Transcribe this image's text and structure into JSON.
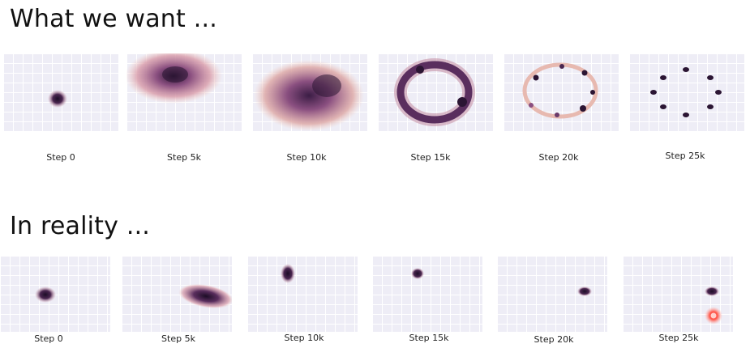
{
  "top_section": {
    "title": "What we want ...",
    "panels": [
      {
        "caption": "Step 0"
      },
      {
        "caption": "Step 5k"
      },
      {
        "caption": "Step 10k"
      },
      {
        "caption": "Step 15k"
      },
      {
        "caption": "Step 20k"
      },
      {
        "caption": "Step 25k"
      }
    ]
  },
  "bottom_section": {
    "title": "In reality ...",
    "panels": [
      {
        "caption": "Step 0"
      },
      {
        "caption": "Step 5k"
      },
      {
        "caption": "Step 10k"
      },
      {
        "caption": "Step 15k"
      },
      {
        "caption": "Step 20k"
      },
      {
        "caption": "Step 25k"
      }
    ]
  },
  "colors": {
    "panel_background": "#eeedf6",
    "density_dark": "#2b1533",
    "density_mid": "#8a4f80",
    "density_light": "#e8b2a6",
    "highlight_marker": "#ff3b30"
  }
}
